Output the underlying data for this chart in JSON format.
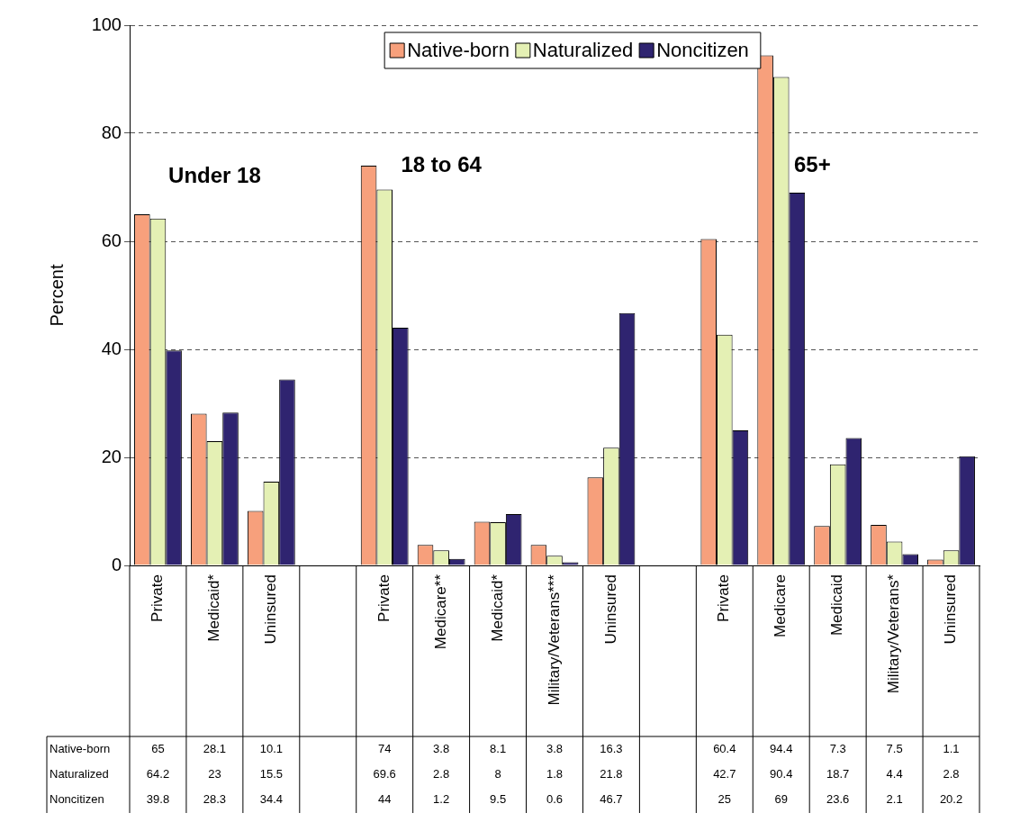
{
  "chart_data": {
    "type": "bar",
    "ylabel": "Percent",
    "categories": [
      "Private",
      "Medicaid*",
      "Uninsured",
      null,
      "Private",
      "Medicare**",
      "Medicaid*",
      "Military/Veterans***",
      "Uninsured",
      null,
      "Private",
      "Medicare",
      "Medicaid",
      "Military/Veterans*",
      "Uninsured"
    ],
    "series": [
      {
        "name": "Native-born",
        "color": "#f7a07c",
        "values": [
          65,
          28.1,
          10.1,
          null,
          74,
          3.8,
          8.1,
          3.8,
          16.3,
          null,
          60.4,
          94.4,
          7.3,
          7.5,
          1.1
        ]
      },
      {
        "name": "Naturalized",
        "color": "#e4f0b4",
        "values": [
          64.2,
          23,
          15.5,
          null,
          69.6,
          2.8,
          8,
          1.8,
          21.8,
          null,
          42.7,
          90.4,
          18.7,
          4.4,
          2.8
        ]
      },
      {
        "name": "Noncitizen",
        "color": "#2f2470",
        "values": [
          39.8,
          28.3,
          34.4,
          null,
          44,
          1.2,
          9.5,
          0.6,
          46.7,
          null,
          25,
          69,
          23.6,
          2.1,
          20.2
        ]
      }
    ],
    "annotations": [
      "Under 18",
      "18 to 64",
      "65+"
    ],
    "ylim": [
      0,
      100
    ],
    "yticks": [
      0,
      20,
      40,
      60,
      80,
      100
    ],
    "grid": "y",
    "legend": "top",
    "data_labels": true
  }
}
